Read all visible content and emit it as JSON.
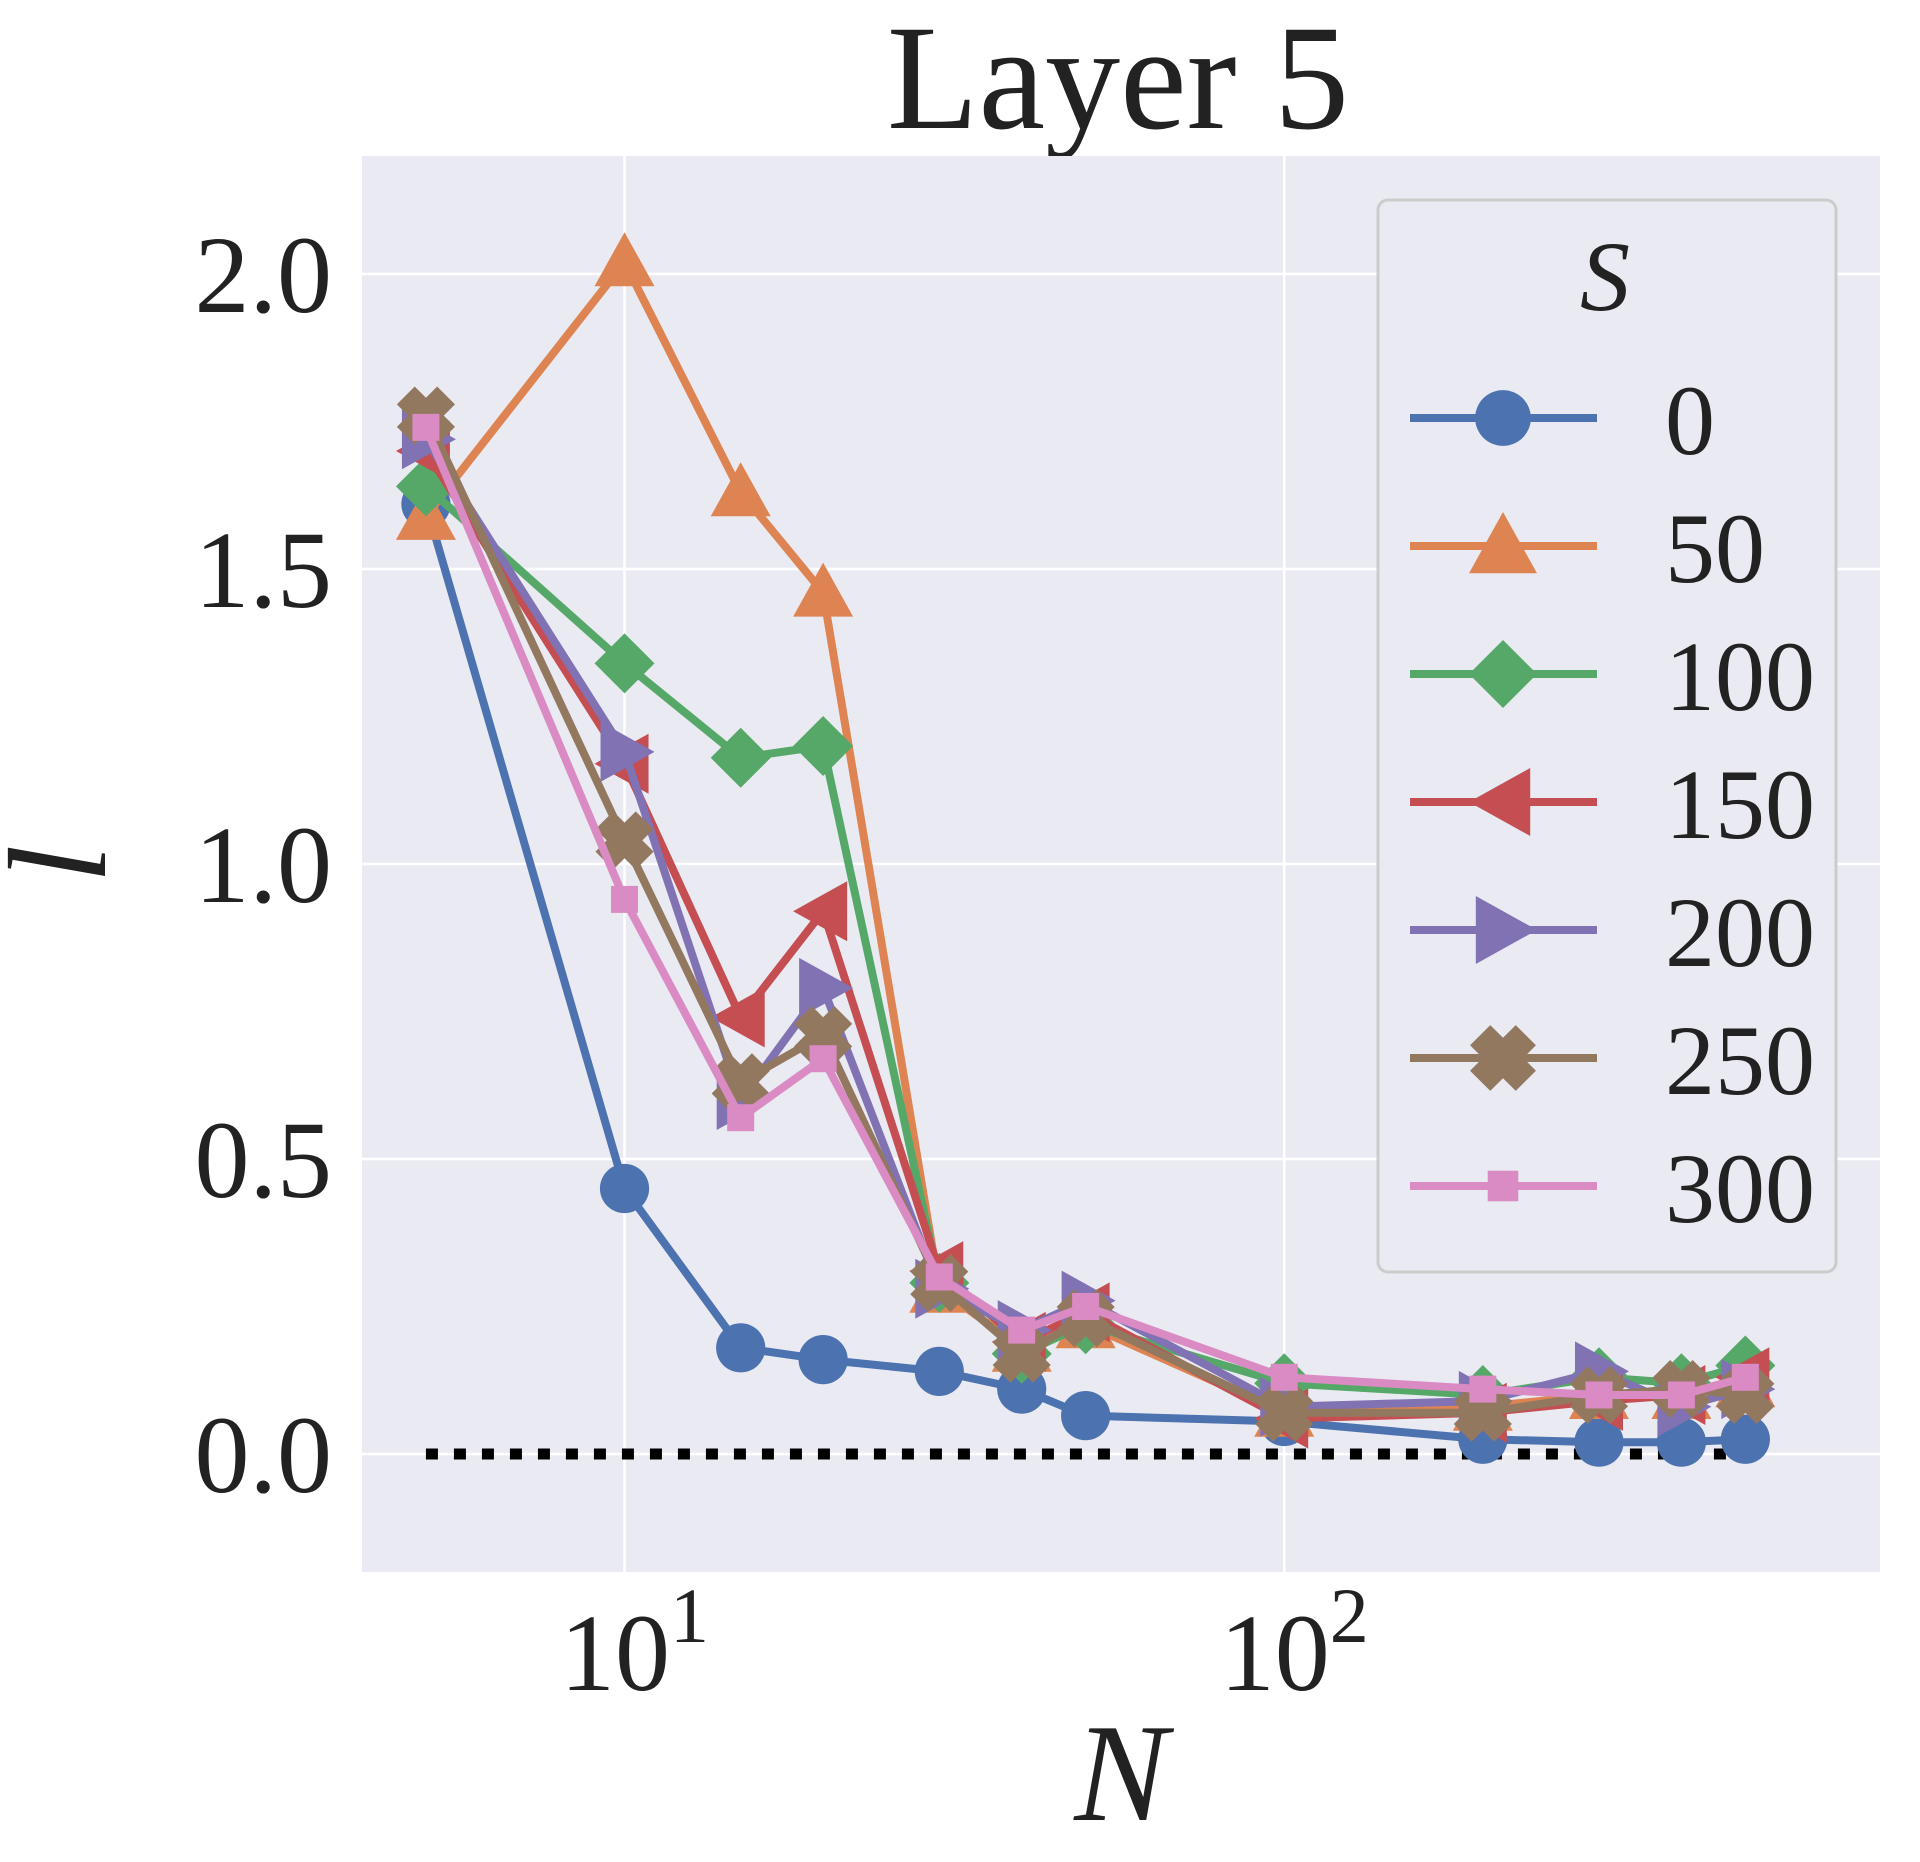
{
  "chart_data": {
    "type": "line",
    "title": "Layer 5",
    "xlabel": "N",
    "ylabel": "l",
    "xscale": "log",
    "xlim": [
      4.0,
      800
    ],
    "ylim": [
      -0.2,
      2.2
    ],
    "grid": true,
    "x_ticks": [
      10,
      100
    ],
    "x_tick_labels": [
      {
        "base": "10",
        "exp": "1"
      },
      {
        "base": "10",
        "exp": "2"
      }
    ],
    "y_ticks": [
      0.0,
      0.5,
      1.0,
      1.5,
      2.0
    ],
    "y_tick_labels": [
      "0.0",
      "0.5",
      "1.0",
      "1.5",
      "2.0"
    ],
    "legend": {
      "title": "S",
      "position": "top-right"
    },
    "reference_line": {
      "y": 0.0,
      "style": "dotted",
      "color": "#000000"
    },
    "x": [
      5,
      10,
      15,
      20,
      30,
      40,
      50,
      100,
      200,
      300,
      400,
      500
    ],
    "series": [
      {
        "name": "0",
        "color": "#4C72B0",
        "marker": "circle",
        "values": [
          1.61,
          0.45,
          0.18,
          0.16,
          0.14,
          0.11,
          0.065,
          0.055,
          0.025,
          0.02,
          0.02,
          0.025
        ]
      },
      {
        "name": "50",
        "color": "#DD8452",
        "marker": "triangle-up",
        "values": [
          1.59,
          2.02,
          1.63,
          1.46,
          0.28,
          0.18,
          0.22,
          0.07,
          0.08,
          0.1,
          0.1,
          0.12
        ]
      },
      {
        "name": "100",
        "color": "#55A868",
        "marker": "diamond",
        "values": [
          1.64,
          1.34,
          1.18,
          1.2,
          0.29,
          0.17,
          0.22,
          0.12,
          0.1,
          0.13,
          0.12,
          0.15
        ]
      },
      {
        "name": "150",
        "color": "#C44E52",
        "marker": "triangle-left",
        "values": [
          1.7,
          1.17,
          0.74,
          0.92,
          0.31,
          0.19,
          0.24,
          0.06,
          0.07,
          0.09,
          0.1,
          0.13
        ]
      },
      {
        "name": "200",
        "color": "#8172B3",
        "marker": "triangle-right",
        "values": [
          1.72,
          1.19,
          0.6,
          0.79,
          0.28,
          0.21,
          0.26,
          0.08,
          0.09,
          0.14,
          0.08,
          0.11
        ]
      },
      {
        "name": "250",
        "color": "#937860",
        "marker": "plus-filled",
        "values": [
          1.76,
          1.04,
          0.63,
          0.71,
          0.29,
          0.17,
          0.23,
          0.07,
          0.07,
          0.1,
          0.11,
          0.1
        ]
      },
      {
        "name": "300",
        "color": "#DA8BC3",
        "marker": "square",
        "values": [
          1.74,
          0.94,
          0.57,
          0.67,
          0.3,
          0.21,
          0.25,
          0.13,
          0.11,
          0.1,
          0.1,
          0.13
        ]
      }
    ]
  }
}
